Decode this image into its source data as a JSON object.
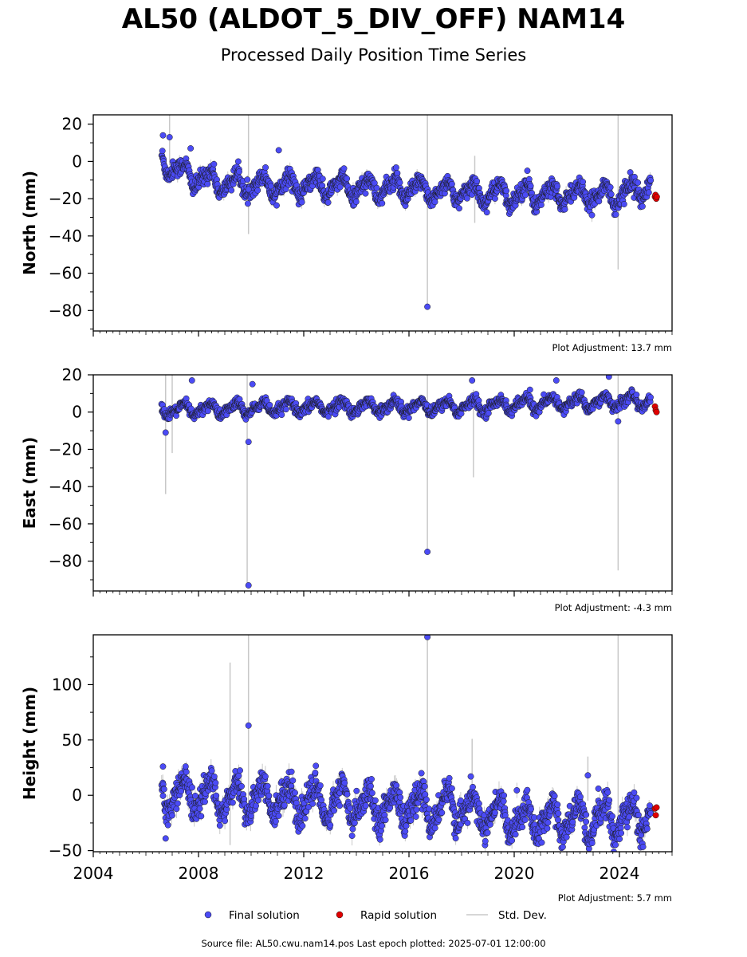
{
  "header": {
    "title": "AL50 (ALDOT_5_DIV_OFF) NAM14",
    "subtitle": "Processed Daily Position Time Series"
  },
  "footer": {
    "source": "Source file: AL50.cwu.nam14.pos  Last epoch plotted: 2025-07-01 12:00:00"
  },
  "colors": {
    "final": "#4b4bf5",
    "rapid": "#e00000",
    "stddev": "#c8c8c8",
    "marker_edge": "#1a1a1a"
  },
  "chart_data": [
    {
      "type": "scatter",
      "panel": "north",
      "ylabel": "North (mm)",
      "ylim": [
        -91,
        25
      ],
      "yticks": [
        20,
        0,
        -20,
        -40,
        -60,
        -80
      ],
      "xlim": [
        2004.0,
        2026.0
      ],
      "xticks": [
        2004,
        2008,
        2012,
        2016,
        2020,
        2024
      ],
      "adjustment_label": "Plot Adjustment: 13.7 mm",
      "trend": [
        [
          2006.6,
          1
        ],
        [
          2007.5,
          -7
        ],
        [
          2009,
          -12
        ],
        [
          2012,
          -13
        ],
        [
          2016,
          -15
        ],
        [
          2020,
          -18
        ],
        [
          2024,
          -18
        ],
        [
          2025.2,
          -13
        ]
      ],
      "seasonal_amplitude": 5,
      "outliers": [
        [
          2006.65,
          14
        ],
        [
          2006.9,
          13
        ],
        [
          2007.7,
          7
        ],
        [
          2011.05,
          6
        ],
        [
          2016.7,
          -78
        ],
        [
          2009.9,
          -15
        ],
        [
          2020.5,
          -5
        ]
      ],
      "error_spikes": [
        [
          2006.9,
          25,
          -2
        ],
        [
          2009.9,
          25,
          -39
        ],
        [
          2016.7,
          25,
          -78
        ],
        [
          2018.5,
          3,
          -33
        ],
        [
          2023.95,
          25,
          -58
        ]
      ],
      "rapid_points": [
        [
          2025.35,
          -19
        ],
        [
          2025.37,
          -18
        ],
        [
          2025.4,
          -20
        ],
        [
          2025.42,
          -19
        ]
      ]
    },
    {
      "type": "scatter",
      "panel": "east",
      "ylabel": "East (mm)",
      "ylim": [
        -96,
        20
      ],
      "yticks": [
        20,
        0,
        -20,
        -40,
        -60,
        -80
      ],
      "xlim": [
        2004.0,
        2026.0
      ],
      "xticks": [
        2004,
        2008,
        2012,
        2016,
        2020,
        2024
      ],
      "adjustment_label": "Plot Adjustment: -4.3 mm",
      "trend": [
        [
          2006.6,
          1
        ],
        [
          2010,
          2
        ],
        [
          2014,
          3
        ],
        [
          2018,
          3
        ],
        [
          2022,
          5
        ],
        [
          2025.2,
          6
        ]
      ],
      "seasonal_amplitude": 3,
      "outliers": [
        [
          2006.75,
          -11
        ],
        [
          2007.75,
          17
        ],
        [
          2009.9,
          -16
        ],
        [
          2010.05,
          15
        ],
        [
          2009.9,
          -93
        ],
        [
          2016.7,
          -75
        ],
        [
          2018.4,
          17
        ],
        [
          2021.6,
          17
        ],
        [
          2023.6,
          19
        ],
        [
          2023.95,
          -5
        ],
        [
          2020.6,
          12
        ]
      ],
      "error_spikes": [
        [
          2006.75,
          20,
          -44
        ],
        [
          2007.0,
          20,
          -22
        ],
        [
          2009.85,
          20,
          -93
        ],
        [
          2016.7,
          20,
          -75
        ],
        [
          2018.45,
          12,
          -35
        ],
        [
          2023.95,
          20,
          -85
        ]
      ],
      "rapid_points": [
        [
          2025.35,
          3
        ],
        [
          2025.38,
          1
        ],
        [
          2025.41,
          0
        ]
      ]
    },
    {
      "type": "scatter",
      "panel": "height",
      "ylabel": "Height (mm)",
      "ylim": [
        -51,
        145
      ],
      "yticks": [
        100,
        50,
        0,
        -50
      ],
      "xlim": [
        2004.0,
        2026.0
      ],
      "xticks": [
        2004,
        2008,
        2012,
        2016,
        2020,
        2024
      ],
      "adjustment_label": "Plot Adjustment: 5.7 mm",
      "trend": [
        [
          2006.6,
          2
        ],
        [
          2010,
          -2
        ],
        [
          2014,
          -8
        ],
        [
          2018,
          -12
        ],
        [
          2020,
          -22
        ],
        [
          2024,
          -22
        ],
        [
          2025.2,
          -18
        ]
      ],
      "seasonal_amplitude": 14,
      "outliers": [
        [
          2006.65,
          26
        ],
        [
          2006.75,
          -39
        ],
        [
          2009.9,
          63
        ],
        [
          2016.7,
          143
        ],
        [
          2018.35,
          17
        ],
        [
          2022.8,
          18
        ],
        [
          2023.2,
          6
        ]
      ],
      "error_spikes": [
        [
          2009.2,
          120,
          -45
        ],
        [
          2009.9,
          145,
          -20
        ],
        [
          2016.7,
          145,
          -10
        ],
        [
          2018.4,
          51,
          -15
        ],
        [
          2022.8,
          35,
          -5
        ],
        [
          2023.95,
          145,
          -30
        ]
      ],
      "rapid_points": [
        [
          2025.35,
          -12
        ],
        [
          2025.38,
          -18
        ],
        [
          2025.41,
          -11
        ]
      ]
    }
  ],
  "legend": {
    "final_label": "Final solution",
    "rapid_label": "Rapid solution",
    "stddev_label": "Std. Dev."
  }
}
